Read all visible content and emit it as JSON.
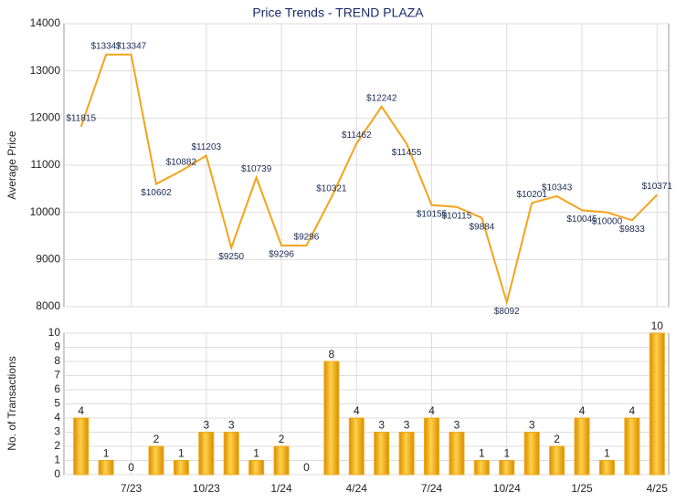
{
  "chart_data": [
    {
      "type": "line",
      "title": "Price Trends - TREND PLAZA",
      "y_label": "Average Price",
      "values": [
        11815,
        13347,
        13347,
        10602,
        10882,
        11203,
        9250,
        10739,
        9296,
        9296,
        10321,
        11462,
        12242,
        11455,
        10155,
        10115,
        9884,
        8092,
        10201,
        10343,
        10045,
        10000,
        9833,
        10371
      ],
      "value_labels": [
        "$11815",
        "$13347",
        "$13347",
        "$10602",
        "$10882",
        "$11203",
        "$9250",
        "$10739",
        "$9296",
        "$9296",
        "$10321",
        "$11462",
        "$12242",
        "$11455",
        "$10155",
        "$10115",
        "$9884",
        "$8092",
        "$10201",
        "$10343",
        "$10045",
        "$10000",
        "$9833",
        "$10371"
      ],
      "color": "#f5a31a",
      "ylim": [
        8000,
        14000
      ],
      "yticks": [
        8000,
        9000,
        10000,
        11000,
        12000,
        13000,
        14000
      ],
      "grid": true
    },
    {
      "type": "bar",
      "y_label": "No. of Transactions",
      "categories": [
        null,
        null,
        "7/23",
        null,
        null,
        "10/23",
        null,
        null,
        "1/24",
        null,
        null,
        "4/24",
        null,
        null,
        "7/24",
        null,
        null,
        "10/24",
        null,
        null,
        "1/25",
        null,
        null,
        "4/25"
      ],
      "values": [
        4,
        1,
        0,
        2,
        1,
        3,
        3,
        1,
        2,
        0,
        8,
        4,
        3,
        3,
        4,
        3,
        1,
        1,
        3,
        2,
        4,
        1,
        4,
        10
      ],
      "color": "#f0a818",
      "ylim": [
        0,
        10
      ],
      "yticks": [
        0,
        1,
        2,
        3,
        4,
        5,
        6,
        7,
        8,
        9,
        10
      ],
      "grid": true
    }
  ]
}
